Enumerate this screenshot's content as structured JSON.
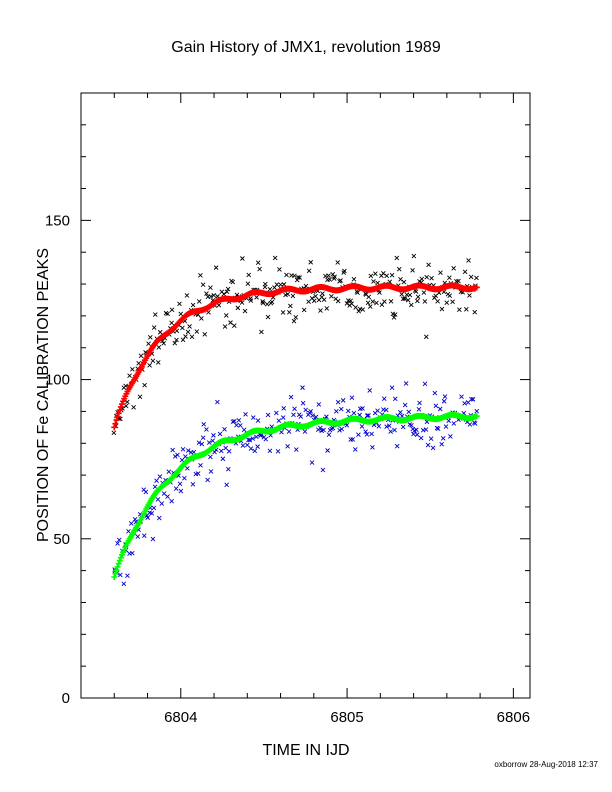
{
  "chart_data": {
    "type": "scatter",
    "title": "Gain History of JMX1, revolution 1989",
    "xlabel": "TIME IN IJD",
    "ylabel": "POSITION OF Fe CALIBRATION PEAKS",
    "xlim": [
      6803.4,
      6806.1
    ],
    "ylim": [
      0,
      190
    ],
    "x_ticks": [
      "6804",
      "6805",
      "6806"
    ],
    "y_ticks": [
      "0",
      "50",
      "100",
      "150"
    ],
    "grid": false,
    "legend": "none",
    "series": [
      {
        "marker": "x",
        "color": "#000000",
        "model": {
          "start": 6803.6,
          "a0": 85,
          "amp": 44,
          "tau": 0.28
        },
        "x_range": [
          6803.6,
          6805.78
        ],
        "scatter_sd": 4.5,
        "n_points": 300
      },
      {
        "marker": "+",
        "color": "#ff0000",
        "model": {
          "start": 6803.6,
          "a0": 85,
          "amp": 44,
          "tau": 0.28
        },
        "x_range": [
          6803.6,
          6805.78
        ],
        "n_points": 330
      },
      {
        "marker": "x",
        "color": "#0000cc",
        "model": {
          "start": 6803.6,
          "a0": 38,
          "amp": 48,
          "tau": 0.33,
          "slope": 1.2
        },
        "x_range": [
          6803.6,
          6805.78
        ],
        "scatter_sd": 4.5,
        "n_points": 300
      },
      {
        "marker": "+",
        "color": "#00ff00",
        "model": {
          "start": 6803.6,
          "a0": 38,
          "amp": 48,
          "tau": 0.33,
          "slope": 1.2
        },
        "x_range": [
          6803.6,
          6805.78
        ],
        "n_points": 330
      }
    ]
  },
  "footer": {
    "credit": "oxborrow 28-Aug-2018 12:37"
  }
}
